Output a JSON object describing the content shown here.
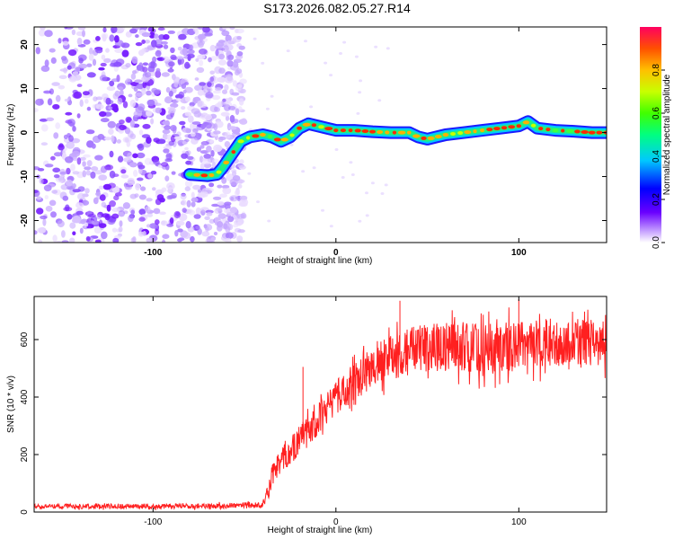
{
  "title": "S173.2026.082.05.27.R14",
  "chart_data": [
    {
      "type": "heatmap",
      "xlabel": "Height of straight line (km)",
      "ylabel": "Frequency (Hz)",
      "xlim": [
        -165,
        148
      ],
      "ylim": [
        -25,
        24
      ],
      "xticks": [
        -100,
        0,
        100
      ],
      "yticks": [
        -20,
        -10,
        0,
        10,
        20
      ],
      "colorbar": {
        "label": "Normalized spectral amplitude",
        "range": [
          0,
          1
        ],
        "ticks": [
          0.0,
          0.2,
          0.4,
          0.6,
          0.8
        ],
        "colors": [
          "#ffffff",
          "#c9a6ff",
          "#6a00ff",
          "#0000ff",
          "#00c8ff",
          "#00ff80",
          "#40ff00",
          "#c8ff00",
          "#ffc000",
          "#ff5000",
          "#ff0060"
        ]
      },
      "noise_region_x": [
        -165,
        -50
      ],
      "ridge": {
        "x": [
          -80,
          -70,
          -65,
          -62,
          -57,
          -52,
          -47,
          -40,
          -35,
          -30,
          -25,
          -20,
          -15,
          -10,
          -5,
          0,
          10,
          20,
          30,
          40,
          45,
          50,
          55,
          60,
          70,
          80,
          90,
          100,
          105,
          110,
          120,
          130,
          140,
          148
        ],
        "y": [
          -9.5,
          -9.8,
          -9.5,
          -8,
          -5,
          -2,
          -1,
          -0.5,
          -1,
          -2,
          -1,
          1,
          2,
          1.5,
          1,
          0.5,
          0.5,
          0.2,
          0,
          0,
          -1,
          -1.5,
          -1,
          -0.5,
          0,
          0.5,
          1,
          1.5,
          2.5,
          1,
          0.5,
          0.3,
          0,
          0
        ]
      }
    },
    {
      "type": "line",
      "xlabel": "Height of straight line (km)",
      "ylabel": "SNR (10 * v/v)",
      "xlim": [
        -165,
        148
      ],
      "ylim": [
        0,
        750
      ],
      "xticks": [
        -100,
        0,
        100
      ],
      "yticks": [
        0,
        200,
        400,
        600
      ],
      "color": "#ff2020",
      "envelope": {
        "x": [
          -165,
          -140,
          -100,
          -60,
          -40,
          -37,
          -35,
          -30,
          -25,
          -20,
          -15,
          -10,
          -5,
          0,
          10,
          20,
          30,
          40,
          50,
          60,
          70,
          80,
          90,
          100,
          110,
          120,
          130,
          140,
          148
        ],
        "y": [
          20,
          20,
          20,
          22,
          25,
          60,
          120,
          180,
          210,
          250,
          280,
          320,
          360,
          400,
          450,
          500,
          540,
          560,
          570,
          575,
          580,
          560,
          570,
          580,
          590,
          590,
          590,
          590,
          590
        ]
      },
      "noise_amplitude": {
        "x": [
          -165,
          -40,
          -37,
          0,
          30,
          80,
          148
        ],
        "y": [
          8,
          10,
          40,
          60,
          80,
          90,
          80
        ]
      },
      "spikes": [
        {
          "x": -18,
          "y": 505
        },
        {
          "x": 35,
          "y": 735
        },
        {
          "x": 100,
          "y": 740
        }
      ]
    }
  ]
}
